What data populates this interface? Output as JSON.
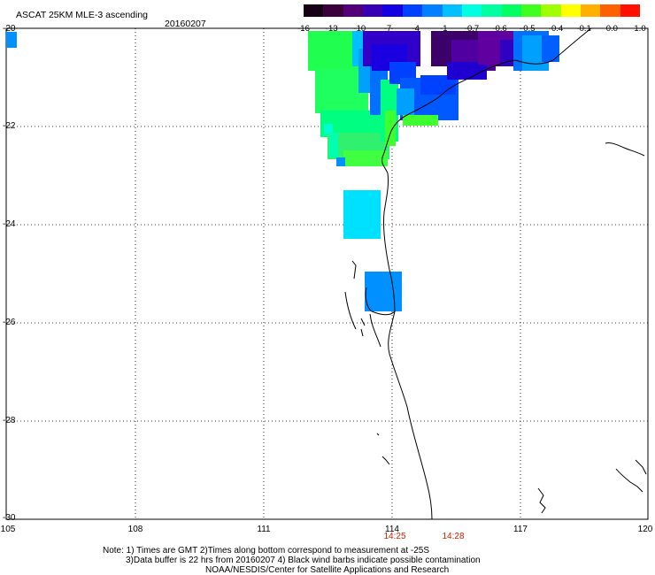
{
  "header": {
    "title": "ASCAT 25KM MLE-3 ascending",
    "date": "20160207"
  },
  "colorbar": {
    "colors": [
      "#160014",
      "#3c003c",
      "#540078",
      "#3800b4",
      "#1400e0",
      "#0040ff",
      "#0080ff",
      "#00c0ff",
      "#00ffe0",
      "#00ffa0",
      "#00ff60",
      "#40ff20",
      "#a0ff00",
      "#ffff00",
      "#ffb000",
      "#ff6000",
      "#ff1000"
    ],
    "tick_labels": [
      "-16",
      "-13",
      "-10",
      "-7",
      "-4",
      "-1",
      "-0.7",
      "-0.6",
      "-0.5",
      "-0.4",
      "-0.1",
      "0.0",
      "1.0"
    ]
  },
  "axes": {
    "lat_labels": [
      "-20",
      "-22",
      "-24",
      "-26",
      "-28",
      "-30"
    ],
    "lon_labels": [
      "105",
      "108",
      "111",
      "114",
      "117",
      "120"
    ]
  },
  "times": [
    "14:25",
    "14:28"
  ],
  "notes": {
    "line1": "Note: 1) Times are GMT 2)Times along bottom correspond to measurement at -25S",
    "line2": "3)Data buffer is 22 hrs from 20160207 4) Black wind barbs indicate possible contamination",
    "line3": "NOAA/NESDIS/Center for Satellite Applications and Research"
  }
}
